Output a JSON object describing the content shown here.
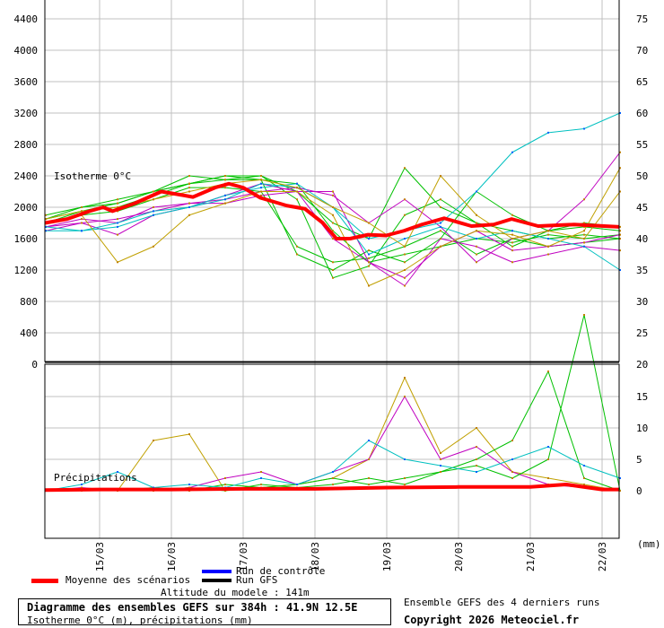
{
  "chart_data": [
    {
      "type": "line",
      "title": "Isotherme 0°C",
      "panel_label": "Isotherme 0°C",
      "ylabel": "Isotherme 0°C (m)",
      "ylim": [
        0,
        4500
      ],
      "y_ticks": [
        0,
        400,
        800,
        1200,
        1600,
        2000,
        2400,
        2800,
        3200,
        3600,
        4000,
        4400
      ],
      "right_ticks": [
        "20",
        "25",
        "30",
        "35",
        "40",
        "45",
        "50",
        "55",
        "60",
        "65",
        "70",
        "75"
      ],
      "x_unit": "days after 15/03 00h",
      "x_ticks": [
        "15/03",
        "16/03",
        "17/03",
        "18/03",
        "19/03",
        "20/03",
        "21/03",
        "22/03"
      ],
      "xlim": [
        -0.76,
        7.24
      ],
      "grid": true,
      "member_x": [
        -0.75,
        -0.25,
        0.25,
        0.75,
        1.25,
        1.75,
        2.25,
        2.75,
        3.25,
        3.75,
        4.25,
        4.75,
        5.25,
        5.75,
        6.25,
        6.75,
        7.25
      ],
      "members": [
        {
          "color": "#00c000",
          "values": [
            1850,
            1950,
            2000,
            2150,
            2300,
            2350,
            2350,
            2300,
            1700,
            1300,
            1400,
            1500,
            1600,
            1550,
            1650,
            1600,
            1650
          ]
        },
        {
          "color": "#00c000",
          "values": [
            1800,
            1900,
            1950,
            2100,
            2250,
            2250,
            2200,
            1500,
            1300,
            1350,
            1500,
            1700,
            1400,
            1600,
            1500,
            1550,
            1600
          ]
        },
        {
          "color": "#00c000",
          "values": [
            1900,
            2000,
            2100,
            2200,
            2400,
            2350,
            2400,
            2100,
            1100,
            1250,
            1900,
            2100,
            1800,
            1500,
            1700,
            1800,
            1750
          ]
        },
        {
          "color": "#00c000",
          "values": [
            1800,
            1950,
            2050,
            2200,
            2300,
            2400,
            2350,
            1400,
            1200,
            1450,
            1300,
            1600,
            2200,
            1900,
            1700,
            1750,
            1700
          ]
        },
        {
          "color": "#00c000",
          "values": [
            1850,
            2000,
            2050,
            2200,
            2300,
            2400,
            2400,
            2200,
            1800,
            1600,
            2500,
            2000,
            1800,
            1700,
            1600,
            1650,
            1600
          ]
        },
        {
          "color": "#c000c0",
          "values": [
            1750,
            1850,
            1800,
            2000,
            2050,
            2050,
            2150,
            2200,
            2200,
            1300,
            1100,
            1500,
            1700,
            1450,
            1500,
            1550,
            1650
          ]
        },
        {
          "color": "#c000c0",
          "values": [
            1700,
            1800,
            1850,
            1950,
            2050,
            2100,
            2200,
            2250,
            2150,
            1800,
            2100,
            1750,
            1300,
            1600,
            1700,
            2100,
            2700
          ]
        },
        {
          "color": "#c000c0",
          "values": [
            1750,
            1800,
            1650,
            1900,
            2000,
            2150,
            2300,
            2200,
            1600,
            1300,
            1000,
            1600,
            1500,
            1300,
            1400,
            1500,
            1450
          ]
        },
        {
          "color": "#00c0c0",
          "values": [
            1700,
            1700,
            1750,
            1900,
            2000,
            2100,
            2300,
            2250,
            2000,
            1600,
            1700,
            1800,
            2200,
            2700,
            2950,
            3000,
            3200
          ]
        },
        {
          "color": "#00c0c0",
          "values": [
            1750,
            1700,
            1800,
            1950,
            2000,
            2150,
            2250,
            2300,
            2000,
            1400,
            1600,
            1750,
            1600,
            1700,
            1600,
            1500,
            1200
          ]
        },
        {
          "color": "#c0a000",
          "values": [
            1800,
            1900,
            1300,
            1500,
            1900,
            2050,
            2200,
            2200,
            1900,
            1000,
            1200,
            1500,
            1700,
            1650,
            1500,
            1700,
            2500
          ]
        },
        {
          "color": "#c0a000",
          "values": [
            1850,
            1950,
            2000,
            2100,
            2200,
            2300,
            2350,
            2250,
            2000,
            1800,
            1500,
            2400,
            1900,
            1600,
            1700,
            1600,
            2200
          ]
        }
      ],
      "mean": {
        "name": "Moyenne des scénarios",
        "color": "#ff0000",
        "x": [
          -0.76,
          -0.45,
          -0.14,
          0.05,
          0.18,
          0.49,
          0.86,
          1.18,
          1.3,
          1.61,
          1.8,
          2.0,
          2.24,
          2.61,
          2.86,
          3.11,
          3.3,
          3.49,
          3.74,
          3.99,
          4.24,
          4.49,
          4.8,
          5.18,
          5.49,
          5.74,
          6.11,
          6.61,
          7.24
        ],
        "values": [
          1800,
          1850,
          1950,
          2000,
          1950,
          2050,
          2200,
          2150,
          2130,
          2250,
          2300,
          2250,
          2120,
          2020,
          1980,
          1800,
          1600,
          1600,
          1650,
          1640,
          1700,
          1780,
          1860,
          1760,
          1780,
          1850,
          1760,
          1780,
          1750
        ]
      }
    },
    {
      "type": "line",
      "title": "Précipitations",
      "panel_label": "Précipitations",
      "ylabel": "précipitations (mm)",
      "unit_label": "(mm)",
      "ylim": [
        0,
        20
      ],
      "right_ticks": [
        "0",
        "5",
        "10",
        "15",
        "20"
      ],
      "member_x": [
        -0.75,
        -0.25,
        0.25,
        0.75,
        1.25,
        1.75,
        2.25,
        2.75,
        3.25,
        3.75,
        4.25,
        4.75,
        5.25,
        5.75,
        6.25,
        6.75,
        7.25
      ],
      "members": [
        {
          "color": "#c0a000",
          "values": [
            0,
            0,
            0,
            8,
            9,
            0,
            0.5,
            1,
            2,
            5,
            18,
            6,
            10,
            3,
            2,
            1,
            0
          ]
        },
        {
          "color": "#c000c0",
          "values": [
            0,
            0.5,
            0,
            0,
            0.5,
            2,
            3,
            1,
            3,
            5,
            15,
            5,
            7,
            3,
            1,
            0.5,
            0
          ]
        },
        {
          "color": "#00c000",
          "values": [
            0,
            0,
            0,
            0.5,
            0,
            1,
            0.5,
            1,
            2,
            1,
            2,
            3,
            5,
            8,
            19,
            2,
            0
          ]
        },
        {
          "color": "#00c000",
          "values": [
            0,
            0,
            0,
            0,
            0.5,
            0,
            1,
            0.5,
            1,
            2,
            1,
            3,
            4,
            2,
            5,
            28,
            0
          ]
        },
        {
          "color": "#00c0c0",
          "values": [
            0,
            1,
            3,
            0.5,
            1,
            0.5,
            2,
            1,
            3,
            8,
            5,
            4,
            3,
            5,
            7,
            4,
            2
          ]
        }
      ],
      "mean": {
        "color": "#ff0000",
        "x": [
          -0.76,
          0,
          1,
          2,
          3,
          4,
          5,
          6,
          6.5,
          7,
          7.24
        ],
        "values": [
          0.1,
          0.2,
          0.2,
          0.3,
          0.3,
          0.5,
          0.6,
          0.6,
          1,
          0.2,
          0.2
        ]
      }
    }
  ],
  "legend": {
    "mean": {
      "label": "Moyenne des scénarios",
      "color": "#ff0000"
    },
    "control": {
      "label": "Run de contrôle",
      "color": "#0000ff"
    },
    "gfs": {
      "label": "Run GFS",
      "color": "#000000"
    }
  },
  "altitude": "Altitude du modele : 141m",
  "title": "Diagramme des ensembles GEFS sur 384h : 41.9N 12.5E",
  "subtitle": "Isotherme 0°C (m), précipitations (mm)",
  "ensemble_note": "Ensemble GEFS des 4 derniers runs",
  "copyright": "Copyright 2026 Meteociel.fr"
}
